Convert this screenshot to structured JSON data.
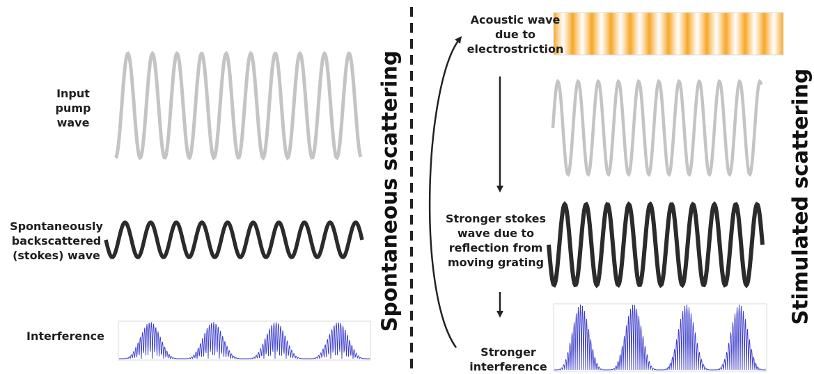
{
  "left_panel": {
    "title": "Spontaneous scattering",
    "input_label": [
      "Input",
      "pump",
      "wave"
    ],
    "stokes_label": [
      "Spontaneously",
      "backscattered",
      "(stokes) wave"
    ],
    "interference_label": "Interference"
  },
  "right_panel": {
    "title": "Stimulated scattering",
    "acoustic_label": [
      "Acoustic wave",
      "due to",
      "electrostriction"
    ],
    "stronger_stokes_label": [
      "Stronger stokes",
      "wave due to",
      "reflection from",
      "moving grating"
    ],
    "stronger_interference_label": [
      "Stronger",
      "interference"
    ]
  },
  "colors": {
    "pump_wave": "#c4c4c4",
    "stokes_wave": "#2b2b2b",
    "interference": "#3a3acc",
    "grating_band": "#f7a21b",
    "divider": "#222222"
  }
}
